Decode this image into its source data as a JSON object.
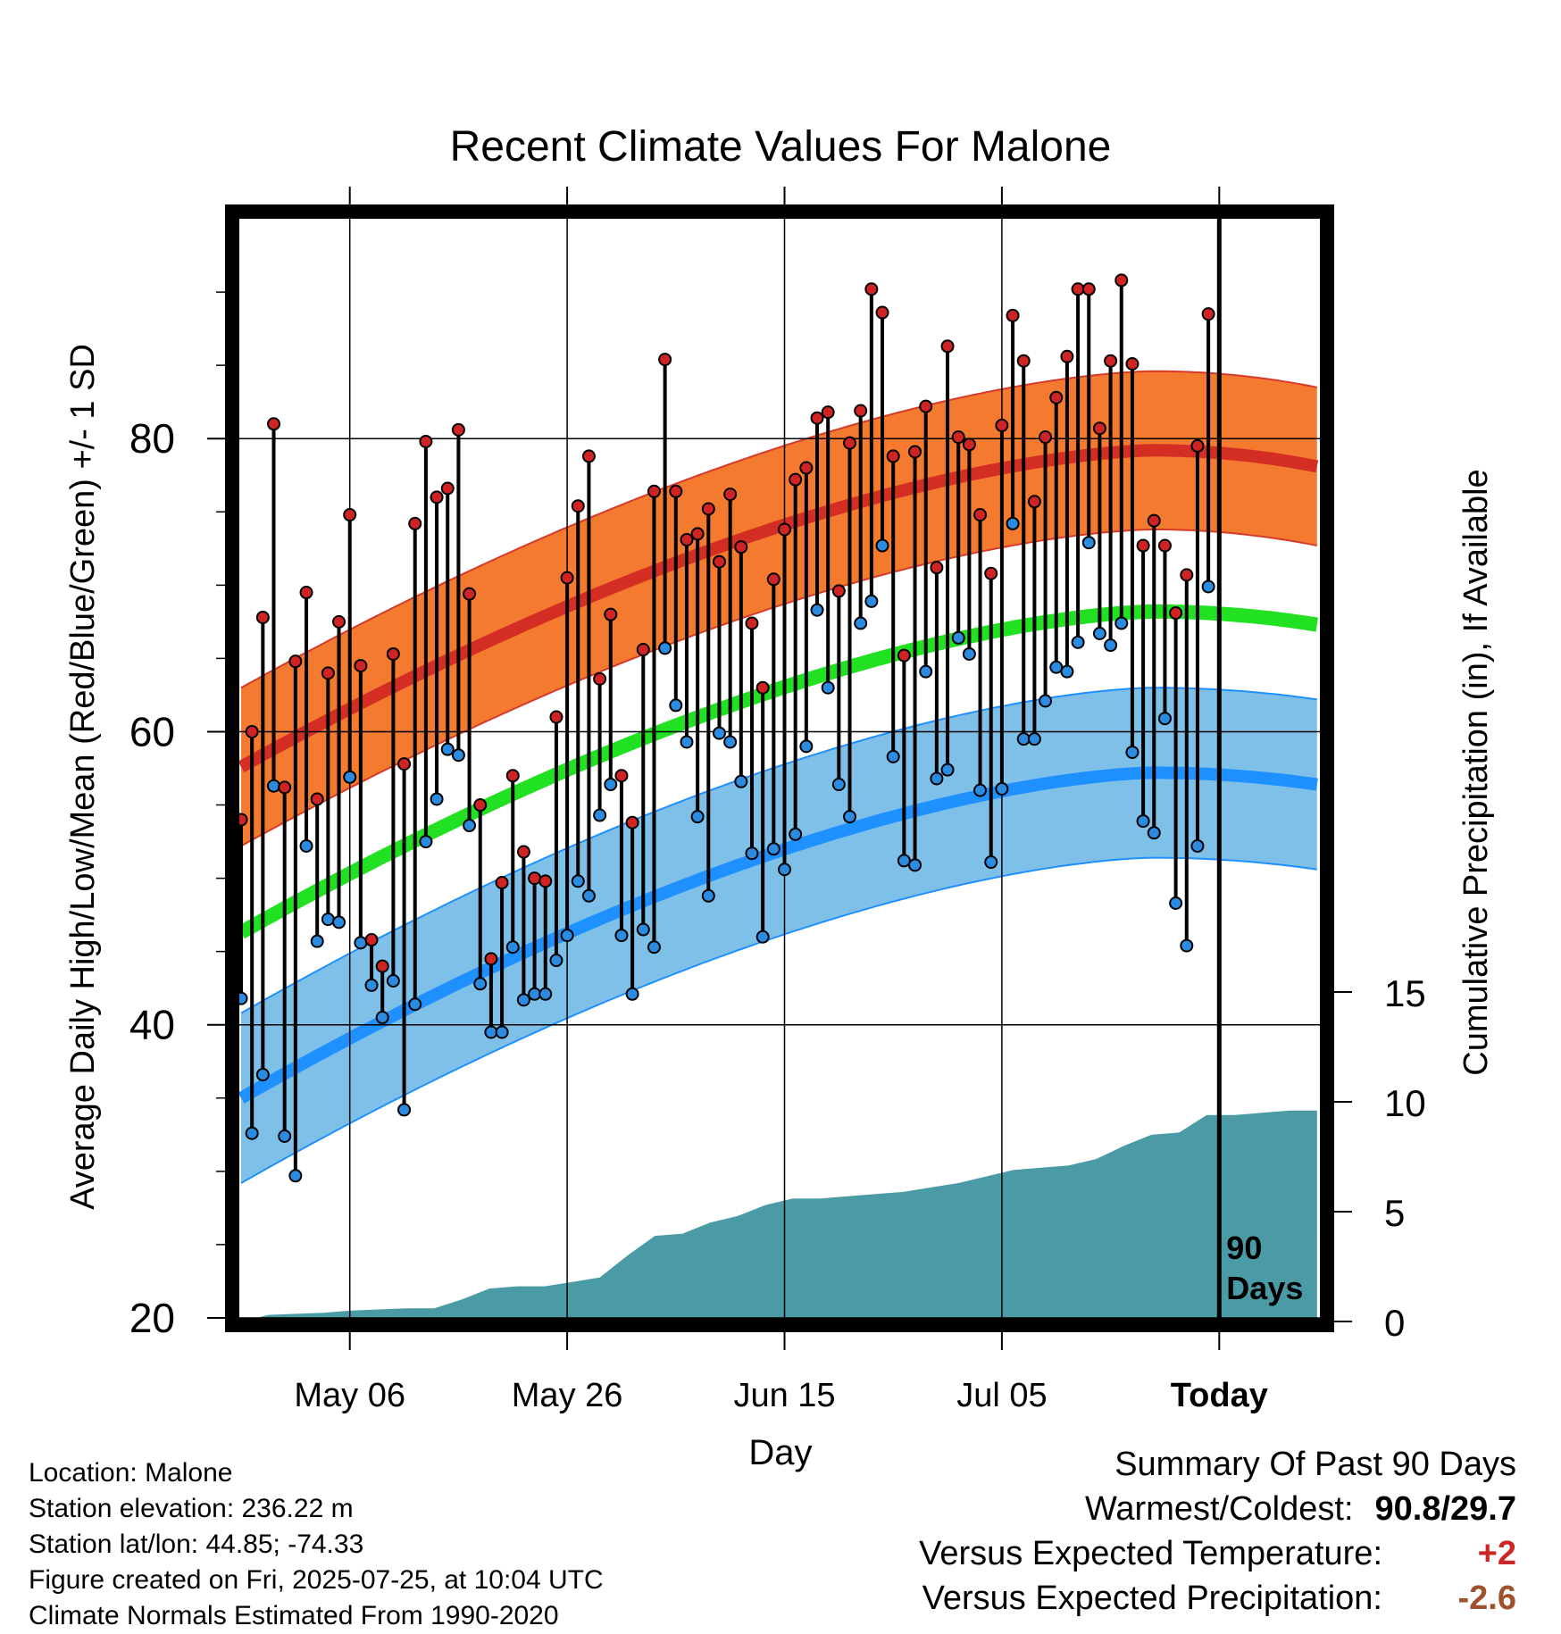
{
  "title": "Recent Climate Values For Malone",
  "chart_data": {
    "type": "line",
    "title": "Recent Climate Values For Malone",
    "xlabel": "Day",
    "ylabel": "Average Daily High/Low/Mean (Red/Blue/Green) +/- 1 SD",
    "y2label": "Cumulative Precipitation (in), If Available",
    "x_ticks": [
      "May 06",
      "May 26",
      "Jun 15",
      "Jul 05",
      "Today"
    ],
    "y_ticks": [
      20,
      40,
      60,
      80
    ],
    "ylim": [
      20,
      95
    ],
    "y2_ticks": [
      0,
      5,
      10,
      15
    ],
    "y2lim": [
      0,
      15
    ],
    "grid": true,
    "window_label_1": "90",
    "window_label_2": "Days",
    "days": 90,
    "days_after_today": 9,
    "normal_high": {
      "start": 57.6,
      "peak": 79.2,
      "end": 78.1
    },
    "normal_high_sd": 5.4,
    "normal_low": {
      "start": 35.0,
      "peak": 57.2,
      "end": 56.4
    },
    "normal_low_sd": 5.8,
    "normal_mean": {
      "start": 46.3,
      "peak": 68.2,
      "end": 67.3
    },
    "daily_high": [
      54.0,
      60.0,
      67.8,
      81.0,
      56.2,
      64.8,
      69.5,
      55.4,
      64.0,
      67.5,
      74.8,
      64.5,
      45.8,
      44.0,
      65.3,
      57.8,
      74.2,
      79.8,
      76.0,
      76.6,
      80.6,
      69.4,
      55.0,
      44.5,
      49.7,
      57.0,
      51.8,
      50.0,
      49.8,
      61.0,
      70.5,
      75.4,
      78.8,
      63.6,
      68.0,
      57.0,
      53.8,
      65.6,
      76.4,
      85.4,
      76.4,
      73.1,
      73.5,
      75.2,
      71.6,
      76.2,
      72.6,
      67.4,
      63.0,
      70.4,
      73.8,
      77.2,
      78.0,
      81.4,
      81.8,
      69.6,
      79.7,
      81.9,
      90.2,
      88.6,
      78.8,
      65.2,
      79.1,
      82.2,
      71.2,
      86.3,
      80.1,
      79.6,
      74.8,
      70.8,
      80.9,
      88.4,
      85.3,
      75.7,
      80.1,
      82.8,
      85.6,
      90.2,
      90.2,
      80.7,
      85.3,
      90.8,
      85.1,
      72.7,
      74.4,
      72.7,
      68.1,
      70.7,
      79.5,
      88.5
    ],
    "daily_low": [
      41.8,
      32.6,
      36.6,
      56.3,
      32.4,
      29.7,
      52.2,
      45.7,
      47.2,
      47.0,
      56.9,
      45.6,
      42.7,
      40.5,
      43.0,
      34.2,
      41.4,
      52.5,
      55.4,
      58.8,
      58.4,
      53.6,
      42.8,
      39.5,
      39.5,
      45.3,
      41.7,
      42.1,
      42.1,
      44.4,
      46.1,
      49.8,
      48.8,
      54.3,
      56.4,
      46.1,
      42.1,
      46.5,
      45.3,
      65.7,
      61.8,
      59.3,
      54.2,
      48.8,
      59.9,
      59.3,
      56.6,
      51.7,
      46.0,
      52.0,
      50.6,
      53.0,
      59.0,
      68.3,
      63.0,
      56.4,
      54.2,
      67.4,
      68.9,
      72.7,
      58.3,
      51.2,
      50.9,
      64.1,
      56.8,
      57.4,
      66.4,
      65.3,
      56.0,
      51.1,
      56.1,
      74.2,
      59.5,
      59.5,
      62.1,
      64.4,
      64.1,
      66.1,
      72.9,
      66.7,
      65.9,
      67.4,
      58.6,
      53.9,
      53.1,
      60.9,
      48.3,
      45.4,
      52.2,
      69.9
    ],
    "cumulative_precip": [
      0.0,
      0.3,
      0.35,
      0.4,
      0.5,
      0.55,
      0.6,
      0.6,
      1.0,
      1.5,
      1.6,
      1.6,
      1.8,
      2.0,
      3.0,
      3.9,
      4.0,
      4.5,
      4.8,
      5.3,
      5.6,
      5.6,
      5.7,
      5.8,
      5.9,
      6.1,
      6.3,
      6.6,
      6.9,
      7.0,
      7.1,
      7.4,
      8.0,
      8.5,
      8.6,
      9.4,
      9.4,
      9.5,
      9.6,
      9.6
    ]
  },
  "info": {
    "location": "Location: Malone",
    "elevation": "Station elevation: 236.22 m",
    "latlon": "Station lat/lon: 44.85; -74.33",
    "created": "Figure created on Fri, 2025-07-25, at 10:04 UTC",
    "normals": "Climate Normals Estimated From 1990-2020"
  },
  "summary": {
    "heading": "Summary Of Past 90 Days",
    "warm_cold_label": "Warmest/Coldest:",
    "warm_cold_value": "90.8/29.7",
    "temp_label": "Versus Expected Temperature:",
    "temp_value": "+2",
    "precip_label": "Versus Expected Precipitation:",
    "precip_value": "-2.6"
  },
  "colors": {
    "high_band": "#f47a30",
    "high_line": "#d42d24",
    "low_band": "#7fc0e8",
    "low_line": "#1e90ff",
    "mean_line": "#22e022",
    "precip": "#4a9ba6",
    "high_dot": "#d02424",
    "low_dot": "#2a8be0"
  }
}
